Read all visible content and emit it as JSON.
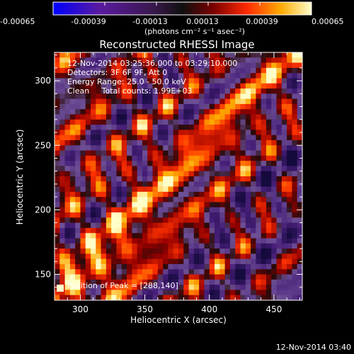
{
  "colorbar": {
    "tick_labels": [
      "-0.00065",
      "-0.00039",
      "-0.00013",
      "0.00013",
      "0.00039",
      "0.00065"
    ],
    "unit_label": "(photons cm⁻² s⁻¹ asec⁻²)",
    "range": [
      -0.00065,
      0.00065
    ],
    "colors": [
      "#0000ff",
      "#5a1aa0",
      "#3b1850",
      "#101010",
      "#7a0000",
      "#ff2a00",
      "#ffaa00",
      "#ffffcc"
    ]
  },
  "chart_data": {
    "type": "heatmap",
    "title": "Reconstructed RHESSI Image",
    "xlabel": "Heliocentric X (arcsec)",
    "ylabel": "Heliocentric Y (arcsec)",
    "xlim": [
      280,
      472
    ],
    "ylim": [
      130,
      322
    ],
    "xticks": [
      300,
      350,
      400,
      450
    ],
    "yticks": [
      150,
      200,
      250,
      300
    ],
    "annotations": [
      "12-Nov-2014 03:25:36.000 to 03:29:10.000",
      "Detectors: 3F 6F 9F, Att 0",
      "Energy Range: 25.0 - 50.0 keV",
      "Clean     Total counts: 1.99E+03"
    ],
    "peak_label": "Position of Peak = [288,140]",
    "peak": [
      288,
      140
    ]
  },
  "footer": {
    "timestamp": "12-Nov-2014 03:40"
  }
}
